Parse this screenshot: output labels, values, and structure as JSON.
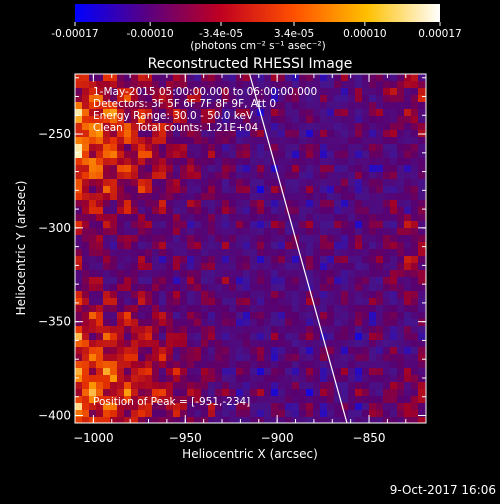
{
  "chart_data": [
    {
      "type": "colorbar",
      "ticks": [
        "-0.00017",
        "-0.00010",
        "-3.4e-05",
        "3.4e-05",
        "0.00010",
        "0.00017"
      ],
      "label": "(photons cm⁻² s⁻¹ asec⁻²)",
      "range": [
        -0.00017,
        0.00017
      ],
      "colormap": [
        "#0000ff",
        "#5a0080",
        "#c00020",
        "#ff5000",
        "#ffc000",
        "#ffffff"
      ]
    },
    {
      "type": "heatmap",
      "title": "Reconstructed RHESSI Image",
      "xlabel": "Heliocentric X (arcsec)",
      "ylabel": "Heliocentric Y (arcsec)",
      "xlim": [
        -1010,
        -819
      ],
      "ylim": [
        -404,
        -218
      ],
      "xticks": [
        -1000,
        -950,
        -900,
        -850
      ],
      "yticks": [
        -250,
        -300,
        -350,
        -400
      ],
      "info_lines": [
        "1-May-2015 05:00:00.000 to 06:00:00.000",
        "Detectors: 3F 5F 6F 7F 8F 9F, Att 0",
        "Energy Range: 30.0 - 50.0 keV",
        "Clean    Total counts: 1.21E+04"
      ],
      "peak_text": "Position of Peak = [-951,-234]",
      "limb_line": [
        [
          -915,
          -218
        ],
        [
          -862,
          -404
        ]
      ],
      "limb_color": "#ffffff"
    }
  ],
  "timestamp": "9-Oct-2017 16:06"
}
